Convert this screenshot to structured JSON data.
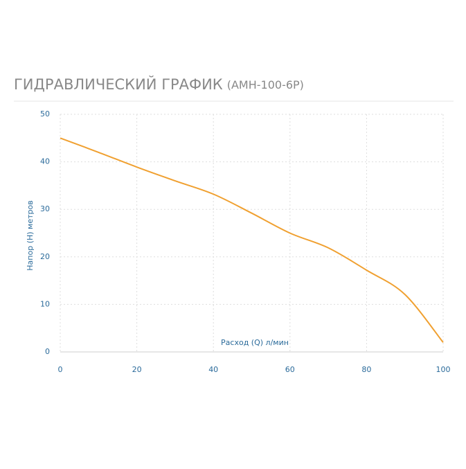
{
  "chart_data": {
    "type": "line",
    "title": "ГИДРАВЛИЧЕСКИЙ ГРАФИК",
    "subtitle": "(АМН-100-6Р)",
    "x_label": "Расход (Q) л/мин",
    "y_label": "Напор (Н) метров",
    "x": [
      0,
      10,
      20,
      30,
      40,
      50,
      60,
      70,
      80,
      90,
      100
    ],
    "series": [
      {
        "color": "#f0a030",
        "values": [
          45,
          42,
          38.9,
          36,
          33.2,
          29.2,
          25,
          21.9,
          17.2,
          12.1,
          2
        ]
      }
    ],
    "xlim": [
      0,
      100
    ],
    "xticks": [
      0,
      20,
      40,
      60,
      80,
      100
    ],
    "ylim": [
      0,
      50
    ],
    "yticks": [
      0,
      10,
      20,
      30,
      40,
      50
    ],
    "grid": true
  }
}
